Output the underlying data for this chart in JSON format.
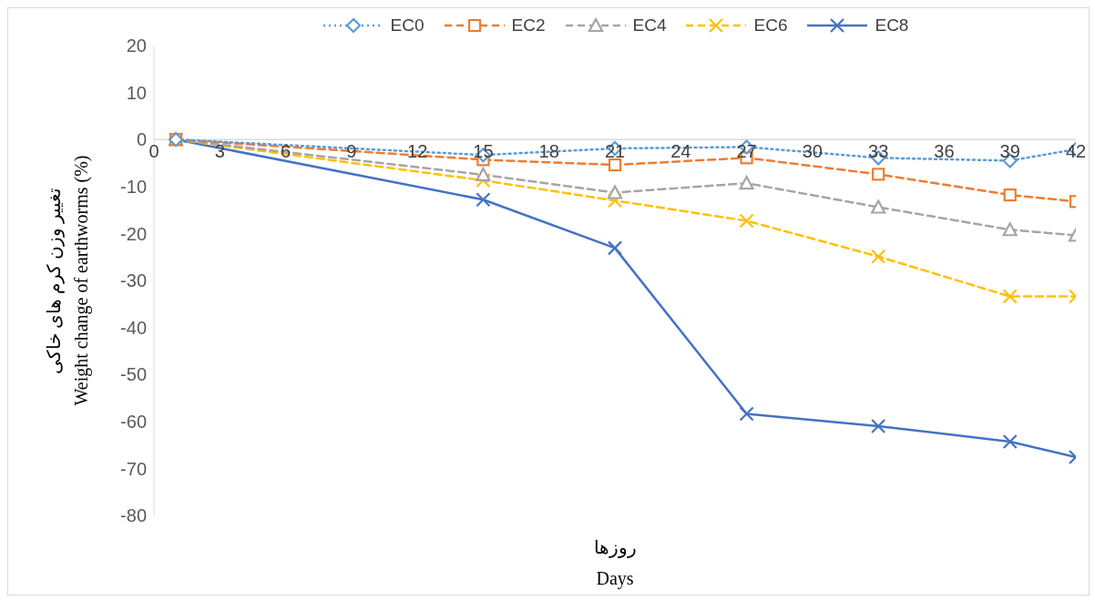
{
  "chart_data": {
    "type": "line",
    "xlabel": "روزها\nDays",
    "ylabel": "تغییر وزن کرم های خاکی\nWeight change of earthworms (%)",
    "x": [
      1,
      15,
      21,
      27,
      33,
      39,
      42
    ],
    "series": [
      {
        "name": "EC0",
        "color": "#5b9bd5",
        "marker": "diamond",
        "line_style": "dotted",
        "values": [
          0,
          -3.3,
          -1.9,
          -1.6,
          -3.9,
          -4.5,
          -2.1
        ]
      },
      {
        "name": "EC2",
        "color": "#ed7d31",
        "marker": "square",
        "line_style": "dashed",
        "values": [
          0,
          -4.3,
          -5.4,
          -3.9,
          -7.4,
          -11.8,
          -13.2
        ]
      },
      {
        "name": "EC4",
        "color": "#a5a5a5",
        "marker": "triangle",
        "line_style": "dashed",
        "values": [
          0,
          -7.5,
          -11.3,
          -9.3,
          -14.4,
          -19.2,
          -20.4
        ]
      },
      {
        "name": "EC6",
        "color": "#ffc000",
        "marker": "cross",
        "line_style": "dashed",
        "values": [
          0,
          -8.7,
          -13,
          -17.3,
          -24.9,
          -33.4,
          -33.4
        ]
      },
      {
        "name": "EC8",
        "color": "#4472c4",
        "marker": "cross",
        "line_style": "solid",
        "values": [
          0,
          -12.8,
          -23.1,
          -58.4,
          -61,
          -64.3,
          -67.6
        ]
      }
    ],
    "xlim": [
      0,
      42
    ],
    "xticks": [
      0,
      3,
      6,
      9,
      12,
      15,
      18,
      21,
      24,
      27,
      30,
      33,
      36,
      39,
      42
    ],
    "ylim": [
      -80,
      20
    ],
    "yticks": [
      -80,
      -70,
      -60,
      -50,
      -40,
      -30,
      -20,
      -10,
      0,
      10,
      20
    ],
    "grid": false,
    "legend": "top"
  }
}
